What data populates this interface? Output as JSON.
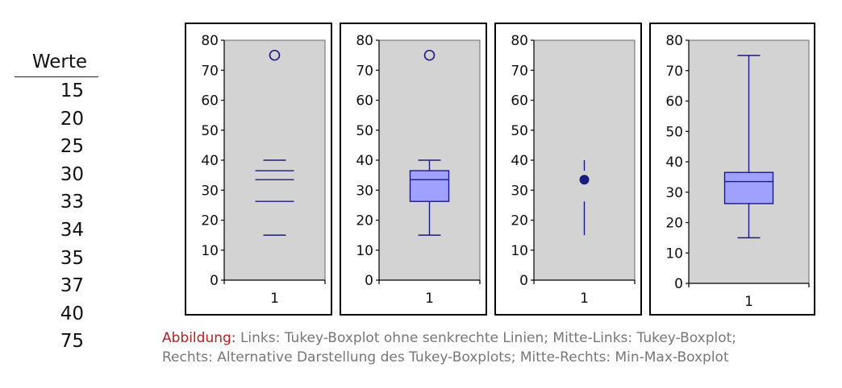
{
  "values_table": {
    "header": "Werte",
    "values": [
      "15",
      "20",
      "25",
      "30",
      "33",
      "34",
      "35",
      "37",
      "40",
      "75"
    ]
  },
  "chart_data": [
    {
      "type": "boxplot",
      "variant": "tukey-no-vertical-lines",
      "categories": [
        "1"
      ],
      "ylim": [
        0,
        80
      ],
      "yticks": [
        0,
        10,
        20,
        30,
        40,
        50,
        60,
        70,
        80
      ],
      "q1": 26.25,
      "median": 33.5,
      "q3": 36.5,
      "whisker_low": 15,
      "whisker_high": 40,
      "outliers": [
        75
      ],
      "grid": false
    },
    {
      "type": "boxplot",
      "variant": "tukey",
      "categories": [
        "1"
      ],
      "ylim": [
        0,
        80
      ],
      "yticks": [
        0,
        10,
        20,
        30,
        40,
        50,
        60,
        70,
        80
      ],
      "q1": 26.25,
      "median": 33.5,
      "q3": 36.5,
      "whisker_low": 15,
      "whisker_high": 40,
      "outliers": [
        75
      ],
      "grid": false
    },
    {
      "type": "boxplot",
      "variant": "alternative-tukey",
      "categories": [
        "1"
      ],
      "ylim": [
        0,
        80
      ],
      "yticks": [
        0,
        10,
        20,
        30,
        40,
        50,
        60,
        70,
        80
      ],
      "q1": 26.25,
      "median": 33.5,
      "q3": 36.5,
      "whisker_low": 15,
      "whisker_high": 40,
      "outliers": [],
      "grid": false
    },
    {
      "type": "boxplot",
      "variant": "min-max",
      "categories": [
        "1"
      ],
      "ylim": [
        0,
        80
      ],
      "yticks": [
        0,
        10,
        20,
        30,
        40,
        50,
        60,
        70,
        80
      ],
      "q1": 26.25,
      "median": 33.5,
      "q3": 36.5,
      "whisker_low": 15,
      "whisker_high": 75,
      "outliers": [],
      "grid": false
    }
  ],
  "colors": {
    "plot_bg": "#d3d3d3",
    "mark": "#1a1a80",
    "box_fill": "#a0a0ff",
    "caption_label": "#b22222",
    "caption_text": "#777777"
  },
  "caption": {
    "label": "Abbildung:",
    "line1": "Links: Tukey-Boxplot ohne senkrechte Linien; Mitte-Links: Tukey-Boxplot;",
    "line2": "Rechts: Alternative Darstellung des Tukey-Boxplots; Mitte-Rechts: Min-Max-Boxplot"
  }
}
